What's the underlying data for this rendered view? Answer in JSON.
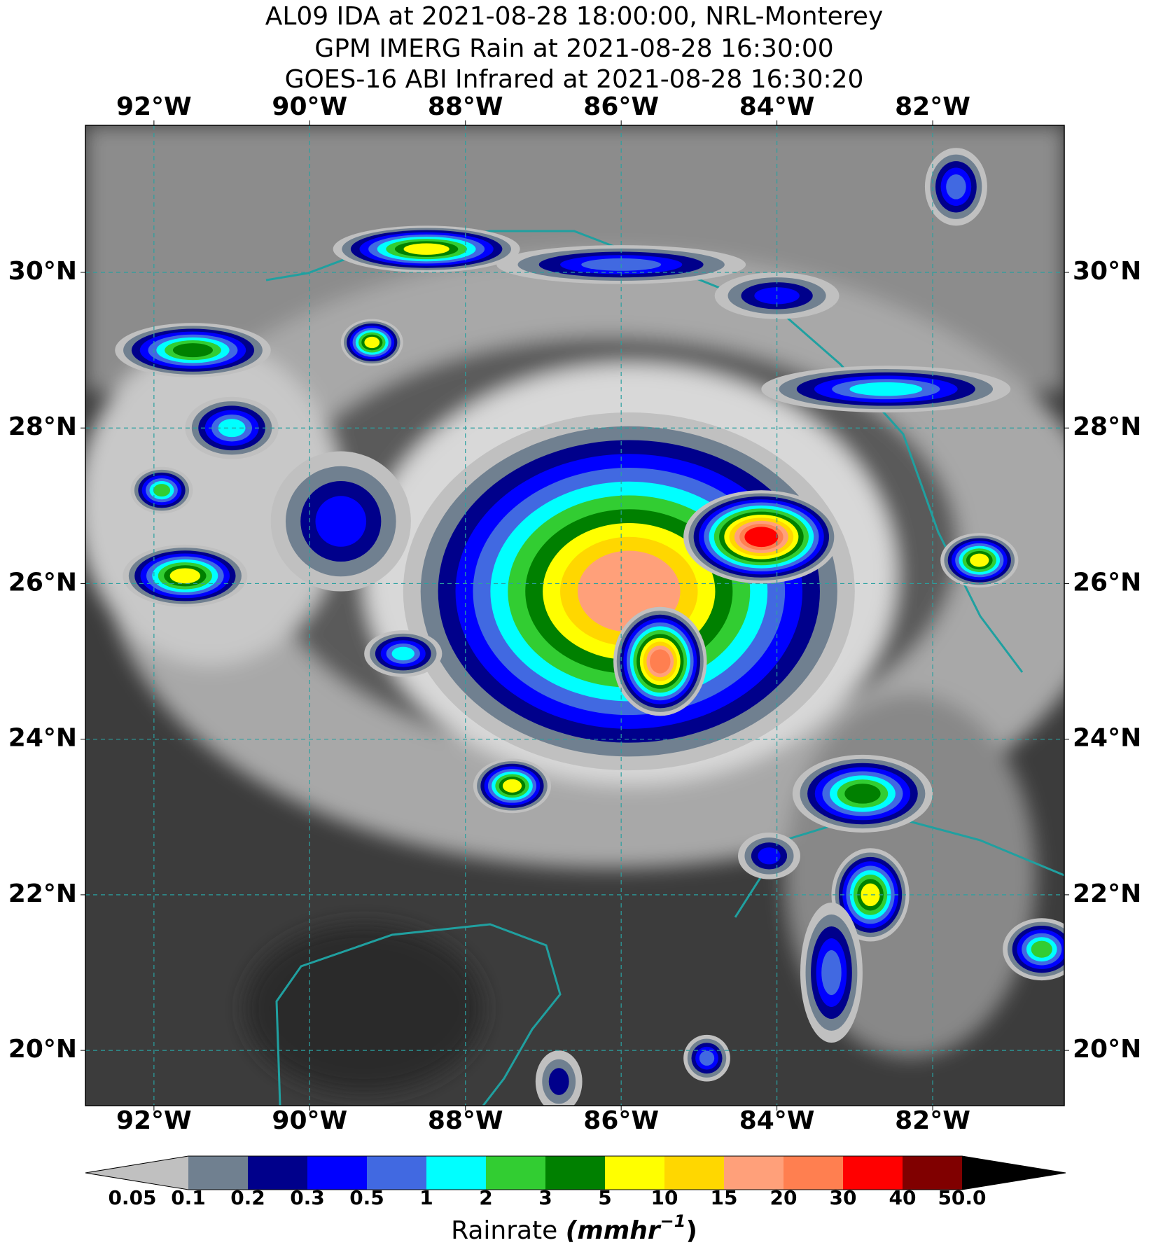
{
  "title_lines": [
    "AL09 IDA at 2021-08-28 18:00:00, NRL-Monterey",
    "GPM IMERG Rain at 2021-08-28 16:30:00",
    "GOES-16 ABI Infrared at 2021-08-28 16:30:20"
  ],
  "map": {
    "lon_range": [
      -92.88,
      -80.31
    ],
    "lat_range": [
      19.29,
      31.89
    ],
    "lon_ticks": [
      {
        "value": -92,
        "label": "92°W"
      },
      {
        "value": -90,
        "label": "90°W"
      },
      {
        "value": -88,
        "label": "88°W"
      },
      {
        "value": -86,
        "label": "86°W"
      },
      {
        "value": -84,
        "label": "84°W"
      },
      {
        "value": -82,
        "label": "82°W"
      }
    ],
    "lat_ticks": [
      {
        "value": 20,
        "label": "20°N"
      },
      {
        "value": 22,
        "label": "22°N"
      },
      {
        "value": 24,
        "label": "24°N"
      },
      {
        "value": 26,
        "label": "26°N"
      },
      {
        "value": 28,
        "label": "28°N"
      },
      {
        "value": 30,
        "label": "30°N"
      }
    ]
  },
  "colorbar": {
    "ticks": [
      0.05,
      0.1,
      0.2,
      0.3,
      0.5,
      1,
      2,
      3,
      5,
      10,
      15,
      20,
      30,
      40,
      {
        "value": 50,
        "label": "50.0"
      }
    ],
    "colors": [
      "#c0c0c0",
      "#708090",
      "#00008b",
      "#0000ff",
      "#4169e1",
      "#00ffff",
      "#32cd32",
      "#008000",
      "#ffff00",
      "#ffd700",
      "#ffa07a",
      "#ff7f50",
      "#ff0000",
      "#800000",
      "#000000"
    ],
    "label": "Rainrate",
    "units": [
      "(mmhr",
      "−1",
      ")"
    ]
  }
}
